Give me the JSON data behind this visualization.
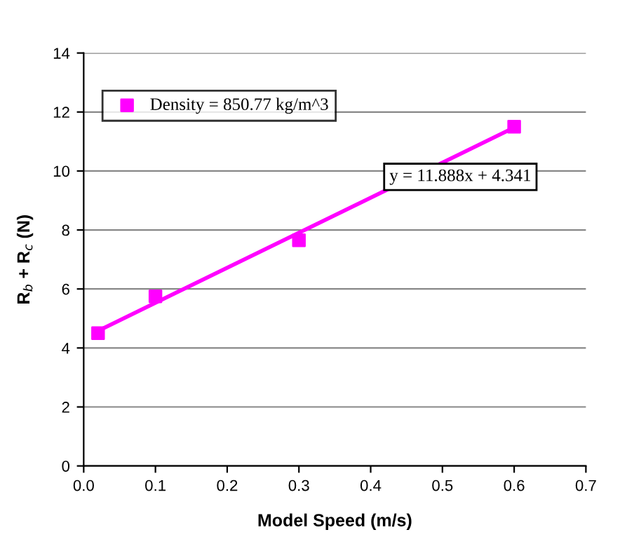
{
  "chart_data": {
    "type": "scatter",
    "xlabel": "Model Speed (m/s)",
    "ylabel": "R$_{b}$ + R$_{c}$ (N)",
    "x": [
      0.02,
      0.1,
      0.3,
      0.6
    ],
    "series": [
      {
        "name": "Density = 850.77 kg/m^3",
        "color": "#ff00ff",
        "values": [
          4.5,
          5.75,
          7.65,
          11.5
        ],
        "marker": "square"
      },
      {
        "type": "line",
        "color": "#ff00ff",
        "x": [
          0.02,
          0.6
        ],
        "values": [
          4.58,
          11.47
        ],
        "marker": "none"
      }
    ],
    "annotations": [
      "y = 11.888x + 4.341"
    ],
    "xlim": [
      0,
      0.7
    ],
    "xticks": [
      {
        "value": 0,
        "label": "0.0"
      },
      0.1,
      0.2,
      0.3,
      0.4,
      0.5,
      0.6,
      0.7
    ],
    "ylim": [
      0,
      14
    ],
    "yticks": [
      0,
      2,
      4,
      6,
      8,
      10,
      12,
      14
    ],
    "grid": "y",
    "legend": "top left"
  }
}
